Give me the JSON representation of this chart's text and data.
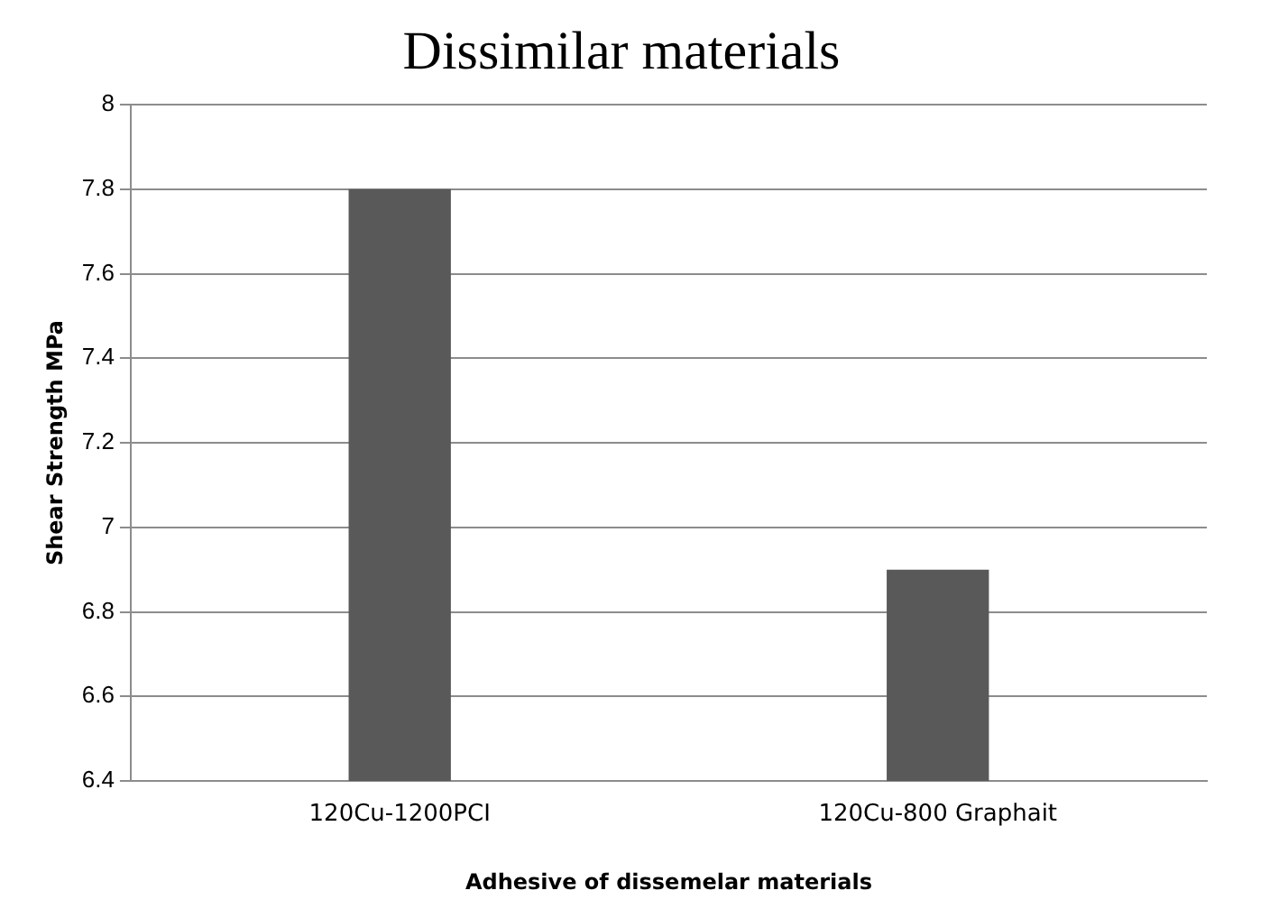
{
  "chart_data": {
    "type": "bar",
    "title": "Dissimilar materials",
    "xlabel": "Adhesive of dissemelar materials",
    "ylabel": "Shear Strength MPa",
    "categories": [
      "120Cu-1200PCI",
      "120Cu-800 Graphait"
    ],
    "values": [
      7.8,
      6.9
    ],
    "color": "#595959",
    "ylim": [
      6.4,
      8
    ],
    "yticks": [
      6.4,
      6.6,
      6.8,
      7,
      7.2,
      7.4,
      7.6,
      7.8,
      8
    ],
    "grid": "y",
    "legend": false
  }
}
